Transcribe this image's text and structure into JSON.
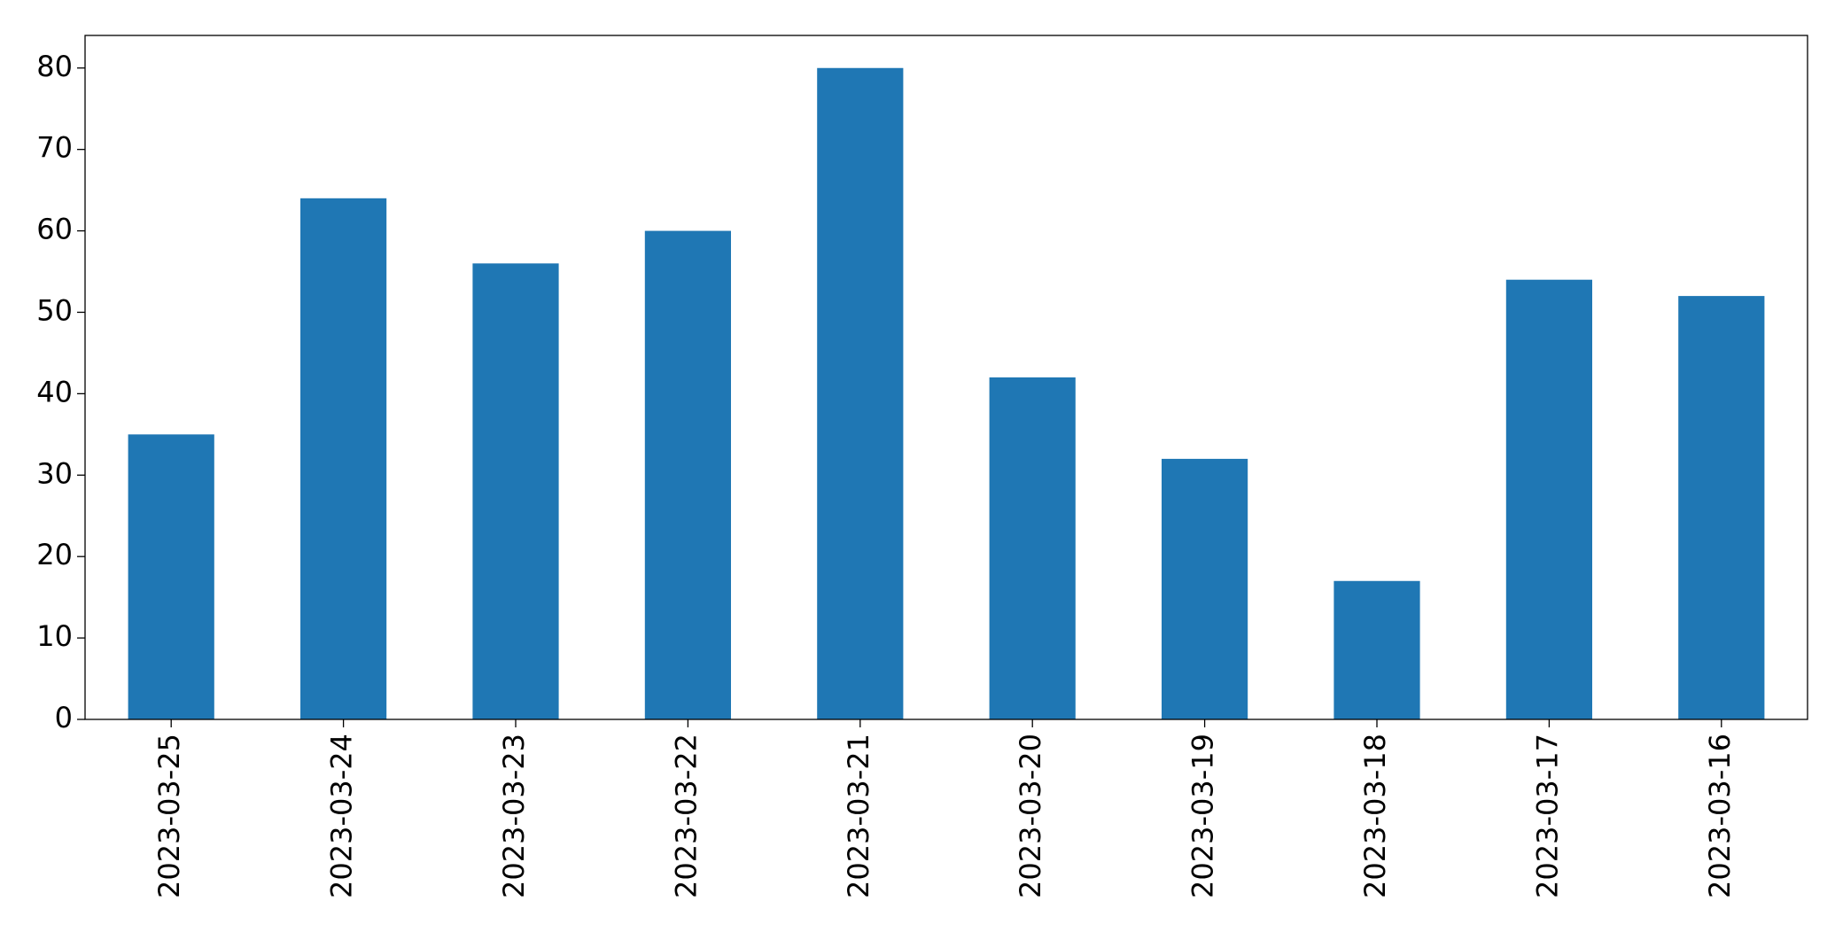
{
  "chart_data": {
    "type": "bar",
    "categories": [
      "2023-03-25",
      "2023-03-24",
      "2023-03-23",
      "2023-03-22",
      "2023-03-21",
      "2023-03-20",
      "2023-03-19",
      "2023-03-18",
      "2023-03-17",
      "2023-03-16"
    ],
    "values": [
      35,
      64,
      56,
      60,
      80,
      42,
      32,
      17,
      54,
      52
    ],
    "color": "#1f77b4",
    "ylim": [
      0,
      84
    ],
    "yticks": [
      0,
      10,
      20,
      30,
      40,
      50,
      60,
      70,
      80
    ],
    "grid": false
  }
}
